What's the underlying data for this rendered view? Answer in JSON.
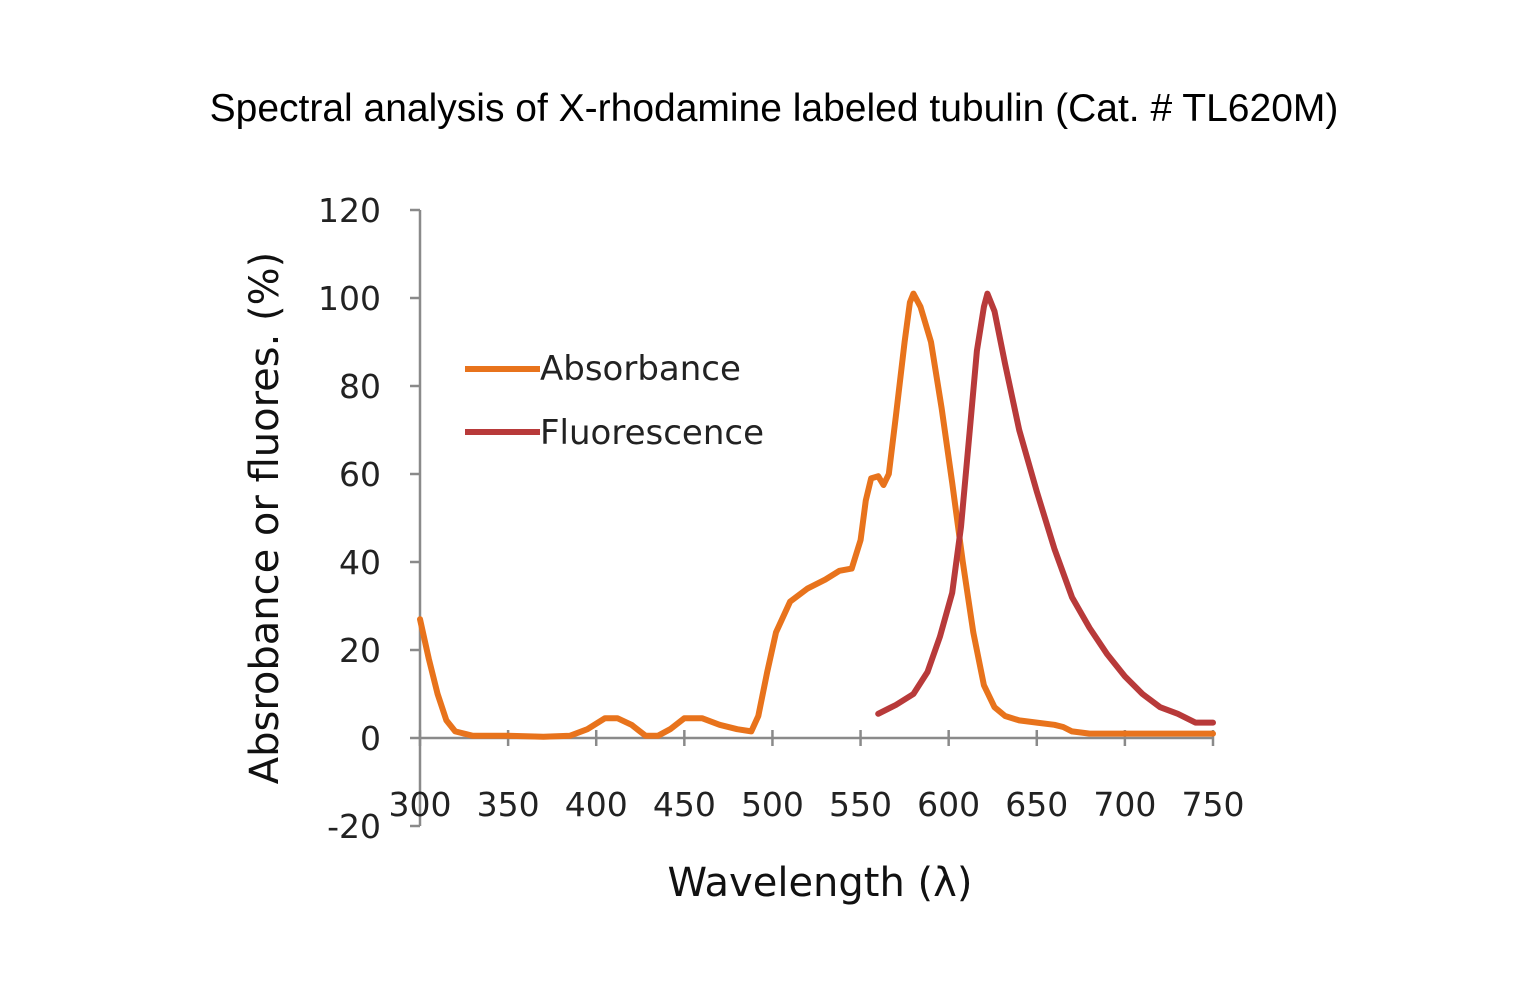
{
  "chart_data": {
    "type": "line",
    "title": "Spectral analysis of X-rhodamine labeled tubulin (Cat. # TL620M)",
    "xlabel": "Wavelength (λ)",
    "ylabel": "Absrobance or fluores. (%)",
    "xlim": [
      300,
      750
    ],
    "ylim": [
      -20,
      120
    ],
    "x_ticks": [
      300,
      350,
      400,
      450,
      500,
      550,
      600,
      650,
      700,
      750
    ],
    "y_ticks": [
      -20,
      0,
      20,
      40,
      60,
      80,
      100,
      120
    ],
    "legend_position": "upper-left",
    "series": [
      {
        "name": "Absorbance",
        "color": "#e8731c",
        "points": [
          [
            300,
            27
          ],
          [
            305,
            18
          ],
          [
            310,
            10
          ],
          [
            315,
            4
          ],
          [
            320,
            1.5
          ],
          [
            330,
            0.5
          ],
          [
            350,
            0.5
          ],
          [
            370,
            0.3
          ],
          [
            385,
            0.5
          ],
          [
            395,
            2
          ],
          [
            405,
            4.5
          ],
          [
            412,
            4.5
          ],
          [
            420,
            3
          ],
          [
            428,
            0.5
          ],
          [
            435,
            0.5
          ],
          [
            442,
            2
          ],
          [
            450,
            4.5
          ],
          [
            460,
            4.5
          ],
          [
            470,
            3
          ],
          [
            480,
            2
          ],
          [
            488,
            1.5
          ],
          [
            492,
            5
          ],
          [
            497,
            15
          ],
          [
            502,
            24
          ],
          [
            510,
            31
          ],
          [
            520,
            34
          ],
          [
            530,
            36
          ],
          [
            538,
            38
          ],
          [
            545,
            38.5
          ],
          [
            550,
            45
          ],
          [
            553,
            54
          ],
          [
            556,
            59
          ],
          [
            560,
            59.5
          ],
          [
            563,
            57.5
          ],
          [
            566,
            60
          ],
          [
            570,
            73
          ],
          [
            575,
            90
          ],
          [
            578,
            99
          ],
          [
            580,
            101
          ],
          [
            584,
            98
          ],
          [
            590,
            90
          ],
          [
            596,
            75
          ],
          [
            602,
            58
          ],
          [
            608,
            40
          ],
          [
            614,
            24
          ],
          [
            620,
            12
          ],
          [
            626,
            7
          ],
          [
            632,
            5
          ],
          [
            640,
            4
          ],
          [
            650,
            3.5
          ],
          [
            660,
            3
          ],
          [
            665,
            2.5
          ],
          [
            670,
            1.5
          ],
          [
            680,
            1
          ],
          [
            700,
            1
          ],
          [
            720,
            1
          ],
          [
            750,
            1
          ]
        ]
      },
      {
        "name": "Fluorescence",
        "color": "#b83a3a",
        "points": [
          [
            560,
            5.5
          ],
          [
            570,
            7.5
          ],
          [
            580,
            10
          ],
          [
            588,
            15
          ],
          [
            595,
            23
          ],
          [
            602,
            33
          ],
          [
            607,
            48
          ],
          [
            612,
            70
          ],
          [
            616,
            88
          ],
          [
            620,
            98
          ],
          [
            622,
            101
          ],
          [
            626,
            97
          ],
          [
            632,
            85
          ],
          [
            640,
            70
          ],
          [
            650,
            56
          ],
          [
            660,
            43
          ],
          [
            670,
            32
          ],
          [
            680,
            25
          ],
          [
            690,
            19
          ],
          [
            700,
            14
          ],
          [
            710,
            10
          ],
          [
            720,
            7
          ],
          [
            730,
            5.5
          ],
          [
            740,
            3.5
          ],
          [
            750,
            3.5
          ]
        ]
      }
    ]
  }
}
